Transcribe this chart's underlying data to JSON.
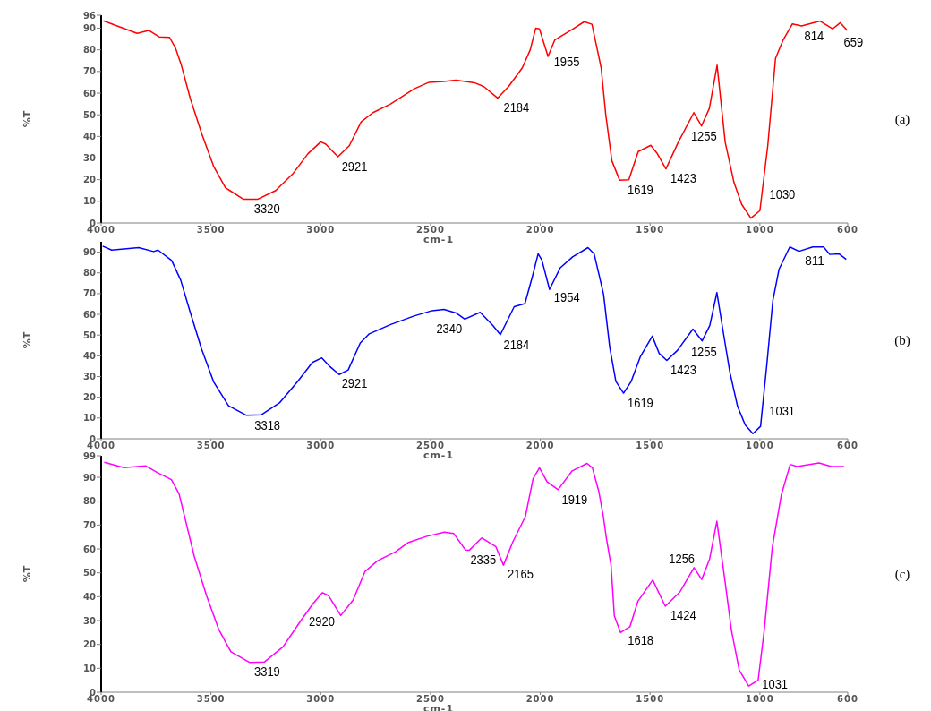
{
  "chart_data": [
    {
      "type": "line",
      "xlabel": "cm-1",
      "ylabel": "%T",
      "xlim": [
        4000,
        600
      ],
      "ylim": [
        0,
        96
      ],
      "xticks": [
        4000,
        3500,
        3000,
        2500,
        2000,
        1500,
        1000,
        600
      ],
      "yticks": [
        0,
        10,
        20,
        30,
        40,
        50,
        60,
        70,
        80,
        90,
        96
      ],
      "grid": false,
      "series": [
        {
          "color": "#ff0000",
          "x": [
            3990,
            3836,
            3783,
            3736,
            3689,
            3662,
            3635,
            3595,
            3541,
            3487,
            3434,
            3353,
            3286,
            3205,
            3125,
            3058,
            3000,
            2977,
            2922,
            2870,
            2816,
            2762,
            2682,
            2574,
            2507,
            2440,
            2384,
            2300,
            2257,
            2194,
            2145,
            2082,
            2046,
            2021,
            2004,
            1965,
            1934,
            1850,
            1800,
            1765,
            1744,
            1723,
            1702,
            1674,
            1639,
            1597,
            1554,
            1497,
            1469,
            1428,
            1372,
            1301,
            1266,
            1230,
            1195,
            1158,
            1118,
            1083,
            1041,
            1000,
            964,
            929,
            894,
            852,
            810,
            726,
            669,
            634,
            602
          ],
          "values": [
            93.4,
            87.6,
            89,
            86,
            85.8,
            81,
            73,
            57.8,
            41,
            26,
            16.3,
            11,
            11,
            15,
            23,
            32,
            37.5,
            36.4,
            30.6,
            35.7,
            46.7,
            51,
            55,
            62,
            65,
            65.4,
            66,
            64.8,
            63,
            57.7,
            63,
            71.7,
            80,
            90,
            89.7,
            77,
            84.6,
            89.7,
            93,
            91.8,
            81.8,
            71.7,
            50,
            28.7,
            19.8,
            20,
            33,
            35.9,
            32.3,
            25,
            37.3,
            51,
            44.8,
            53,
            72.9,
            37.3,
            18.7,
            8.6,
            2.2,
            5.7,
            35.9,
            76,
            84.6,
            92,
            91,
            93.3,
            89.7,
            92.5,
            89
          ]
        }
      ],
      "annotations": [
        {
          "text": "3320",
          "x": 3320,
          "y": 11
        },
        {
          "text": "2921",
          "x": 2921,
          "y": 30.6
        },
        {
          "text": "2184",
          "x": 2184,
          "y": 58
        },
        {
          "text": "1955",
          "x": 1955,
          "y": 79
        },
        {
          "text": "1619",
          "x": 1619,
          "y": 20
        },
        {
          "text": "1423",
          "x": 1423,
          "y": 25
        },
        {
          "text": "1255",
          "x": 1255,
          "y": 47
        },
        {
          "text": "1030",
          "x": 1030,
          "y": 3
        },
        {
          "text": "814",
          "x": 814,
          "y": 91
        },
        {
          "text": "659",
          "x": 659,
          "y": 90.5
        },
        "(a)"
      ]
    },
    {
      "type": "line",
      "xlabel": "cm-1",
      "ylabel": "%T",
      "xlim": [
        4000,
        600
      ],
      "ylim": [
        0,
        95
      ],
      "xticks": [
        4000,
        3500,
        3000,
        2500,
        2000,
        1500,
        1000,
        600
      ],
      "yticks": [
        0,
        10,
        20,
        30,
        40,
        50,
        60,
        70,
        80,
        90
      ],
      "grid": false,
      "series": [
        {
          "color": "#0000ff",
          "x": [
            3993,
            3952,
            3829,
            3761,
            3741,
            3679,
            3638,
            3597,
            3543,
            3488,
            3420,
            3338,
            3270,
            3188,
            3106,
            3038,
            2995,
            2957,
            2916,
            2875,
            2820,
            2779,
            2684,
            2575,
            2493,
            2439,
            2384,
            2344,
            2274,
            2217,
            2182,
            2119,
            2070,
            2035,
            2010,
            1993,
            1958,
            1909,
            1853,
            1783,
            1755,
            1712,
            1684,
            1656,
            1621,
            1586,
            1544,
            1490,
            1459,
            1424,
            1375,
            1305,
            1263,
            1228,
            1196,
            1165,
            1137,
            1102,
            1067,
            1032,
            997,
            969,
            941,
            913,
            864,
            822,
            759,
            710,
            682,
            640,
            607
          ],
          "values": [
            92.9,
            91,
            92.2,
            90.3,
            91,
            86,
            76.6,
            62,
            43.4,
            27.5,
            15.9,
            11.3,
            11.6,
            17.3,
            27.5,
            36.8,
            39,
            34.7,
            31,
            33.2,
            46.2,
            50.6,
            55,
            59.2,
            61.8,
            62.4,
            60.7,
            57.7,
            61,
            54.7,
            50.2,
            63.7,
            65.2,
            78.7,
            89.2,
            86.2,
            72,
            82.5,
            87.7,
            92.2,
            89.2,
            69.7,
            44.2,
            27.7,
            22,
            27.7,
            39.7,
            49.5,
            41.2,
            37.8,
            42.7,
            52.9,
            47.2,
            54.7,
            70.5,
            50.2,
            32.2,
            15.7,
            6.7,
            2.5,
            6,
            35.2,
            66.7,
            81.7,
            92.5,
            90.4,
            92.5,
            92.5,
            88.9,
            89.2,
            86.5
          ]
        }
      ],
      "annotations": [
        {
          "text": "3318",
          "x": 3318,
          "y": 11.3
        },
        {
          "text": "2921",
          "x": 2921,
          "y": 31.5
        },
        {
          "text": "2340",
          "x": 2340,
          "y": 58
        },
        {
          "text": "2184",
          "x": 2184,
          "y": 50.2
        },
        {
          "text": "1954",
          "x": 1954,
          "y": 73
        },
        {
          "text": "1619",
          "x": 1619,
          "y": 22
        },
        {
          "text": "1423",
          "x": 1423,
          "y": 37.8
        },
        {
          "text": "1255",
          "x": 1255,
          "y": 49
        },
        {
          "text": "1031",
          "x": 1031,
          "y": 2.6
        },
        {
          "text": "811",
          "x": 811,
          "y": 90.8
        },
        "(b)"
      ]
    },
    {
      "type": "line",
      "xlabel": "cm-1",
      "ylabel": "%T",
      "xlim": [
        4000,
        600
      ],
      "ylim": [
        0,
        99
      ],
      "xticks": [
        4000,
        3500,
        3000,
        2500,
        2000,
        1500,
        1000,
        600
      ],
      "yticks": [
        0,
        10,
        20,
        30,
        40,
        50,
        60,
        70,
        80,
        90,
        99
      ],
      "grid": false,
      "series": [
        {
          "color": "#ff00ff",
          "x": [
            3986,
            3896,
            3798,
            3743,
            3680,
            3645,
            3618,
            3576,
            3520,
            3465,
            3409,
            3325,
            3256,
            3172,
            3089,
            3034,
            2992,
            2964,
            2909,
            2853,
            2798,
            2742,
            2659,
            2603,
            2520,
            2437,
            2395,
            2340,
            2324,
            2267,
            2203,
            2168,
            2125,
            2068,
            2033,
            2004,
            1969,
            1919,
            1855,
            1787,
            1763,
            1734,
            1713,
            1699,
            1678,
            1663,
            1635,
            1592,
            1556,
            1488,
            1431,
            1364,
            1300,
            1265,
            1229,
            1196,
            1158,
            1130,
            1094,
            1051,
            1008,
            980,
            944,
            902,
            862,
            831,
            731,
            674,
            617
          ],
          "values": [
            96.3,
            94,
            94.8,
            91.9,
            89,
            83,
            72.8,
            56.9,
            40.4,
            26.4,
            16.9,
            12.5,
            12.7,
            19,
            30.2,
            37.2,
            41.7,
            40.4,
            32.1,
            38.5,
            50.6,
            55,
            58.8,
            62.6,
            65.2,
            67,
            66.5,
            59.5,
            59.4,
            64.6,
            61,
            53.2,
            63,
            73.6,
            89.4,
            94,
            88.1,
            84.8,
            92.7,
            95.8,
            94,
            84.2,
            73.6,
            64.4,
            53.2,
            32,
            25,
            27.4,
            38,
            47,
            36,
            42,
            52.2,
            47.2,
            55.8,
            71.6,
            45.9,
            26.1,
            9.2,
            2.6,
            5,
            26.1,
            60.4,
            82.8,
            95.4,
            94.5,
            96,
            94.5,
            94.5
          ]
        }
      ],
      "annotations": [
        {
          "text": "3319",
          "x": 3319,
          "y": 12.6
        },
        {
          "text": "2920",
          "x": 2920,
          "y": 33.8
        },
        {
          "text": "2335",
          "x": 2335,
          "y": 59.5
        },
        {
          "text": "2165",
          "x": 2165,
          "y": 53.5
        },
        {
          "text": "1919",
          "x": 1919,
          "y": 84.8
        },
        {
          "text": "1618",
          "x": 1618,
          "y": 26
        },
        {
          "text": "1424",
          "x": 1424,
          "y": 36.5
        },
        {
          "text": "1256",
          "x": 1256,
          "y": 49.3
        },
        {
          "text": "1031",
          "x": 1031,
          "y": 3.5
        },
        "(c)"
      ]
    }
  ]
}
